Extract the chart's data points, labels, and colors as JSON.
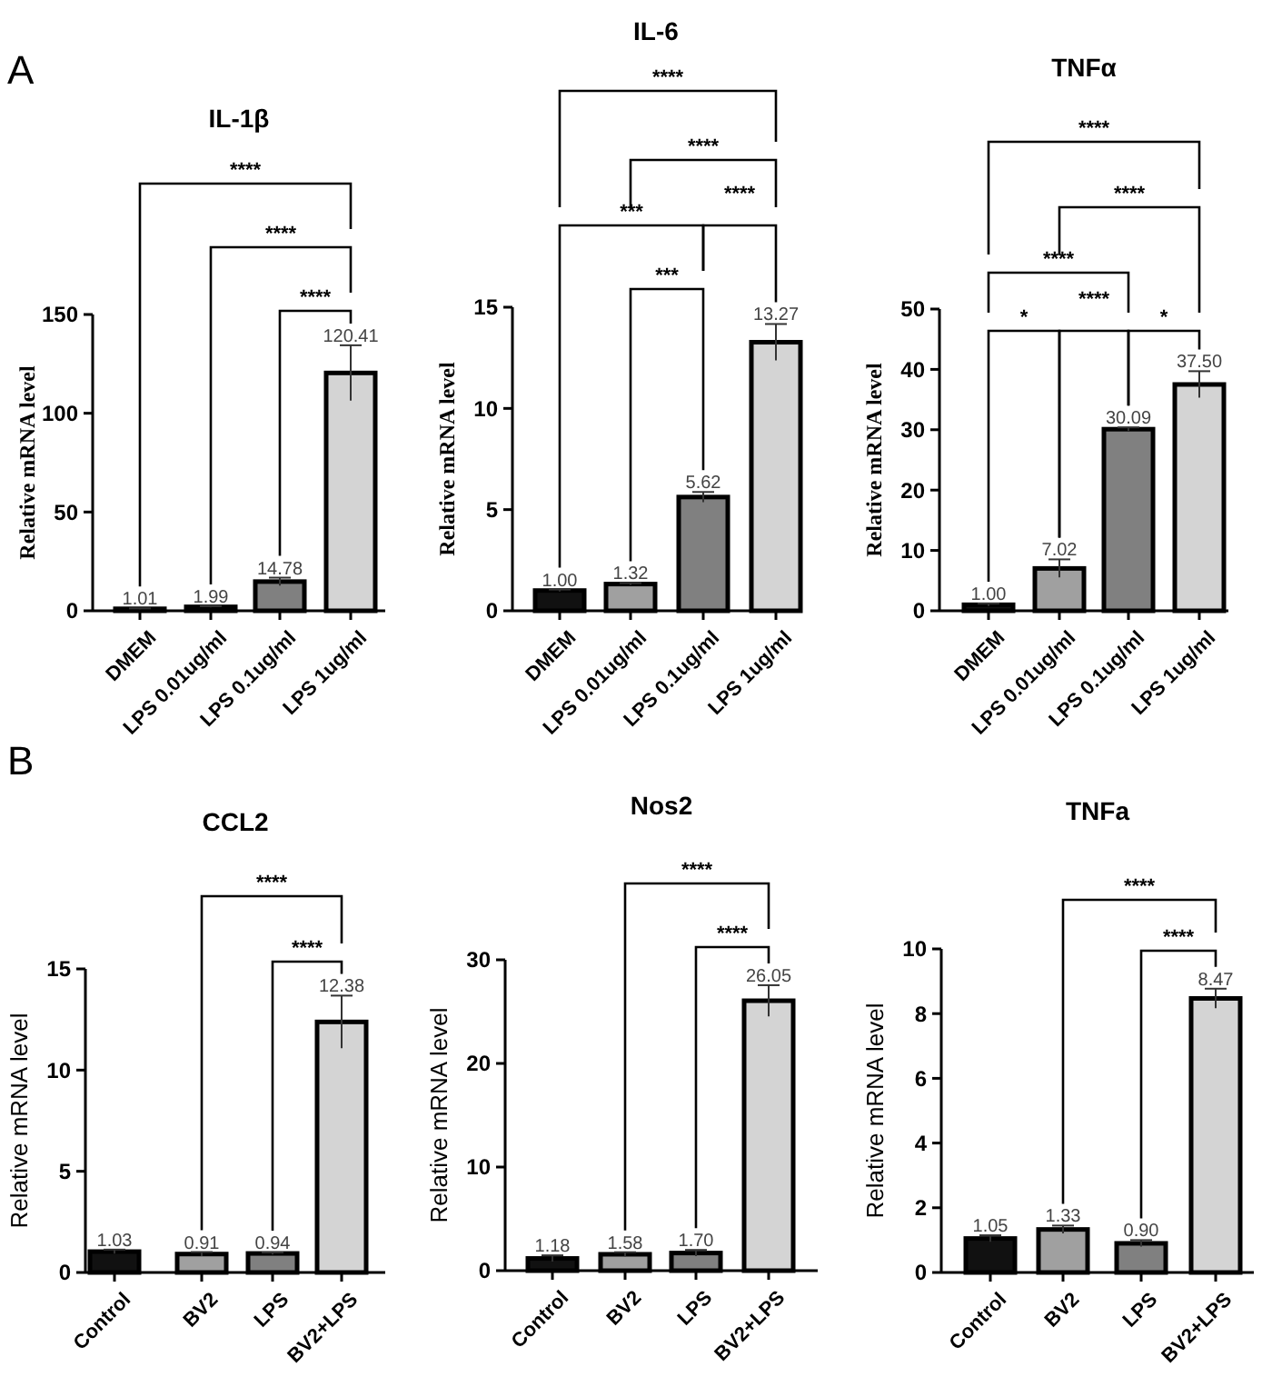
{
  "chart_data": [
    {
      "type": "bar",
      "title": "IL-1β",
      "ylabel": "Relative mRNA level",
      "categories": [
        "DMEM",
        "LPS 0.01ug/ml",
        "LPS 0.1ug/ml",
        "LPS 1ug/ml"
      ],
      "values": [
        1.01,
        1.99,
        14.78,
        120.41
      ],
      "errors": [
        0.2,
        0.3,
        2,
        14
      ],
      "value_labels": [
        "1.01",
        "1.99",
        "14.78",
        "120.41"
      ],
      "colors": [
        "#111111",
        "#a0a0a0",
        "#808080",
        "#d4d4d4"
      ],
      "ylim": [
        0,
        150
      ],
      "yticks": [
        0,
        50,
        100,
        150
      ],
      "annotations": [
        "A",
        "****",
        "****",
        "****"
      ]
    },
    {
      "type": "bar",
      "title": "IL-6",
      "ylabel": "Relative mRNA level",
      "categories": [
        "DMEM",
        "LPS 0.01ug/ml",
        "LPS 0.1ug/ml",
        "LPS 1ug/ml"
      ],
      "values": [
        1.0,
        1.32,
        5.62,
        13.27
      ],
      "errors": [
        0.05,
        0.05,
        0.25,
        0.9
      ],
      "value_labels": [
        "1.00",
        "1.32",
        "5.62",
        "13.27"
      ],
      "colors": [
        "#111111",
        "#a0a0a0",
        "#808080",
        "#d4d4d4"
      ],
      "ylim": [
        0,
        15
      ],
      "yticks": [
        0,
        5,
        10,
        15
      ],
      "annotations": [
        "****",
        "****",
        "***",
        "****",
        "***"
      ]
    },
    {
      "type": "bar",
      "title": "TNFα",
      "ylabel": "Relative mRNA level",
      "categories": [
        "DMEM",
        "LPS 0.01ug/ml",
        "LPS 0.1ug/ml",
        "LPS 1ug/ml"
      ],
      "values": [
        1.0,
        7.02,
        30.09,
        37.5
      ],
      "errors": [
        0.2,
        1.5,
        0.3,
        2.2
      ],
      "value_labels": [
        "1.00",
        "7.02",
        "30.09",
        "37.50"
      ],
      "colors": [
        "#111111",
        "#a0a0a0",
        "#808080",
        "#d4d4d4"
      ],
      "ylim": [
        0,
        50
      ],
      "yticks": [
        0,
        10,
        20,
        30,
        40,
        50
      ],
      "annotations": [
        "****",
        "****",
        "****",
        "*",
        "****",
        "*"
      ]
    },
    {
      "type": "bar",
      "title": "CCL2",
      "ylabel": "Relative mRNA level",
      "categories": [
        "Control",
        "BV2",
        "LPS",
        "BV2+LPS"
      ],
      "values": [
        1.03,
        0.91,
        0.94,
        12.38
      ],
      "errors": [
        0.1,
        0.1,
        0.05,
        1.3
      ],
      "value_labels": [
        "1.03",
        "0.91",
        "0.94",
        "12.38"
      ],
      "colors": [
        "#111111",
        "#a0a0a0",
        "#808080",
        "#d4d4d4"
      ],
      "ylim": [
        0,
        15
      ],
      "yticks": [
        0,
        5,
        10,
        15
      ],
      "annotations": [
        "B",
        "****",
        "****"
      ]
    },
    {
      "type": "bar",
      "title": "Nos2",
      "ylabel": "Relative mRNA level",
      "categories": [
        "Control",
        "BV2",
        "LPS",
        "BV2+LPS"
      ],
      "values": [
        1.18,
        1.58,
        1.7,
        26.05
      ],
      "errors": [
        0.3,
        0.2,
        0.3,
        1.5
      ],
      "value_labels": [
        "1.18",
        "1.58",
        "1.70",
        "26.05"
      ],
      "colors": [
        "#111111",
        "#a0a0a0",
        "#808080",
        "#d4d4d4"
      ],
      "ylim": [
        0,
        30
      ],
      "yticks": [
        0,
        10,
        20,
        30
      ],
      "annotations": [
        "****",
        "****"
      ]
    },
    {
      "type": "bar",
      "title": "TNFa",
      "ylabel": "Relative mRNA level",
      "categories": [
        "Control",
        "BV2",
        "LPS",
        "BV2+LPS"
      ],
      "values": [
        1.05,
        1.33,
        0.9,
        8.47
      ],
      "errors": [
        0.1,
        0.12,
        0.1,
        0.3
      ],
      "value_labels": [
        "1.05",
        "1.33",
        "0.90",
        "8.47"
      ],
      "colors": [
        "#111111",
        "#a0a0a0",
        "#808080",
        "#d4d4d4"
      ],
      "ylim": [
        0,
        10
      ],
      "yticks": [
        0,
        2,
        4,
        6,
        8,
        10
      ],
      "annotations": [
        "****",
        "****"
      ]
    }
  ]
}
